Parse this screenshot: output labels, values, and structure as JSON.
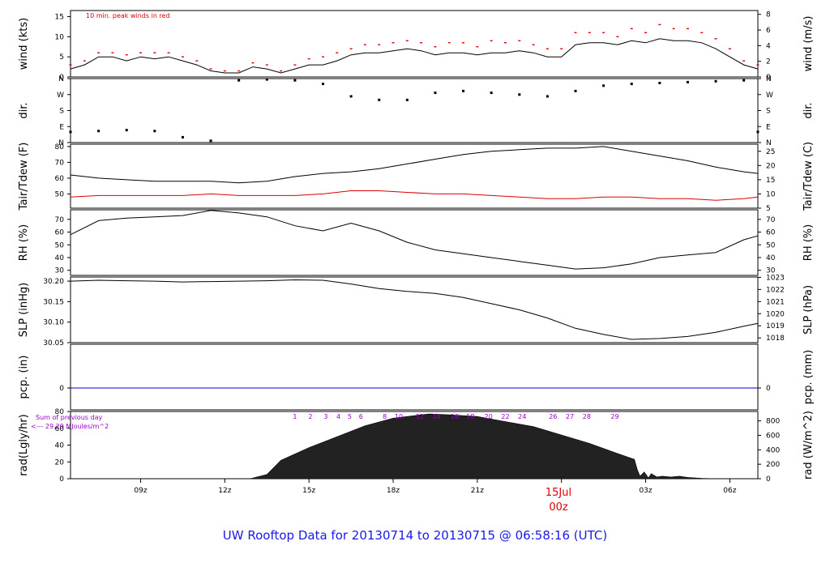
{
  "title": "UW Rooftop Data for 20130714  to  20130715 @ 06:58:16  (UTC)",
  "wind_note": "10 min. peak winds in red",
  "date_marker": {
    "day": "15Jul",
    "hour": "00z"
  },
  "solar_note": {
    "line1": "Sum of previous day",
    "line2": "<--- 29.29 MJoules/m^2"
  },
  "colors": {
    "title": "#1a1ae6",
    "peak": "#dd0000",
    "dew": "#dd0000",
    "precip": "#0000cc",
    "solar_marks": "#9900cc",
    "frame": "#000000"
  },
  "chart_data": [
    {
      "type": "line",
      "name": "wind",
      "ylabel_left": "wind (kts)",
      "ylabel_right": "wind (m/s)",
      "yticks_left": [
        "0",
        "5",
        "10",
        "15"
      ],
      "yticks_right": [
        "0",
        "2",
        "4",
        "6",
        "8"
      ],
      "ylim": [
        0,
        16.5
      ],
      "x_hours": [
        6.5,
        7.0,
        7.5,
        8.0,
        8.5,
        9.0,
        9.5,
        10.0,
        10.5,
        11.0,
        11.5,
        12.0,
        12.5,
        13.0,
        13.5,
        14.0,
        14.5,
        15.0,
        15.5,
        16.0,
        16.5,
        17.0,
        17.5,
        18.0,
        18.5,
        19.0,
        19.5,
        20.0,
        20.5,
        21.0,
        21.5,
        22.0,
        22.5,
        23.0,
        23.5,
        24.0,
        24.5,
        25.0,
        25.5,
        26.0,
        26.5,
        27.0,
        27.5,
        28.0,
        28.5,
        29.0,
        29.5,
        30.0,
        30.5,
        31.0
      ],
      "series": [
        {
          "values": [
            2,
            3,
            5,
            5,
            4,
            5,
            4.5,
            5,
            4,
            3,
            1.5,
            1,
            1,
            2.5,
            2,
            1,
            2,
            3,
            3,
            4,
            5.5,
            6,
            6,
            6.5,
            7,
            6.5,
            5.5,
            6,
            6,
            5.5,
            6,
            6,
            6.5,
            6,
            5,
            5,
            8,
            8.5,
            8.5,
            8,
            9,
            8.5,
            9.5,
            9,
            9,
            8.5,
            7,
            5,
            3,
            2
          ]
        },
        {
          "values": [
            3,
            4,
            6,
            6,
            5.5,
            6,
            6,
            6,
            5,
            4,
            2,
            1.5,
            1.5,
            3.5,
            3,
            1.5,
            3,
            4.5,
            5,
            6,
            7,
            8,
            8,
            8.5,
            9,
            8.5,
            7.5,
            8.5,
            8.5,
            7.5,
            9,
            8.5,
            9,
            8,
            7,
            7,
            11,
            11,
            11,
            10,
            12,
            11,
            13,
            12,
            12,
            11,
            9.5,
            7,
            4,
            3
          ]
        }
      ]
    },
    {
      "type": "scatter",
      "name": "wind direction",
      "ylabel_left": "dir.",
      "ylabel_right": "dir.",
      "yticks_left": [
        "N",
        "E",
        "S",
        "W",
        "N"
      ],
      "yticks_right": [
        "N",
        "E",
        "S",
        "W",
        "N"
      ],
      "ylim": [
        0,
        360
      ],
      "x_hours": [
        6.5,
        7.5,
        8.5,
        9.5,
        10.5,
        11.5,
        12.5,
        13.5,
        14.5,
        15.5,
        16.5,
        17.5,
        18.5,
        19.5,
        20.5,
        21.5,
        22.5,
        23.5,
        24.5,
        25.5,
        26.5,
        27.5,
        28.5,
        29.5,
        30.5,
        31.0
      ],
      "values": [
        60,
        65,
        70,
        65,
        30,
        10,
        350,
        355,
        350,
        330,
        260,
        240,
        240,
        280,
        290,
        280,
        270,
        260,
        290,
        320,
        330,
        335,
        340,
        345,
        350,
        60
      ]
    },
    {
      "type": "line",
      "name": "temperature",
      "ylabel_left": "Tair/Tdew (F)",
      "ylabel_right": "Tair/Tdew (C)",
      "yticks_left": [
        "50",
        "60",
        "70",
        "80"
      ],
      "yticks_right": [
        "5",
        "10",
        "15",
        "20",
        "25"
      ],
      "ylim": [
        41,
        81.5
      ],
      "x_hours": [
        6.5,
        7.5,
        8.5,
        9.5,
        10.5,
        11.5,
        12.5,
        13.5,
        14.5,
        15.5,
        16.5,
        17.5,
        18.5,
        19.5,
        20.5,
        21.5,
        22.5,
        23.5,
        24.5,
        25.5,
        26.5,
        27.5,
        28.5,
        29.5,
        30.5,
        31.0
      ],
      "series": [
        {
          "values": [
            62,
            60,
            59,
            58,
            58,
            58,
            57,
            58,
            61,
            63,
            64,
            66,
            69,
            72,
            75,
            77,
            78,
            79,
            79,
            80,
            77,
            74,
            71,
            67,
            64,
            63
          ]
        },
        {
          "values": [
            48,
            49,
            49,
            49,
            49,
            50,
            49,
            49,
            49,
            50,
            52,
            52,
            51,
            50,
            50,
            49,
            48,
            47,
            47,
            48,
            48,
            47,
            47,
            46,
            47,
            48
          ]
        }
      ]
    },
    {
      "type": "line",
      "name": "relative humidity",
      "ylabel_left": "RH (%)",
      "ylabel_right": "RH (%)",
      "yticks_left": [
        "30",
        "40",
        "50",
        "60",
        "70"
      ],
      "yticks_right": [
        "30",
        "40",
        "50",
        "60",
        "70"
      ],
      "ylim": [
        26,
        77.5
      ],
      "x_hours": [
        6.5,
        7.5,
        8.5,
        9.5,
        10.5,
        11.5,
        12.5,
        13.5,
        14.5,
        15.5,
        16.5,
        17.5,
        18.5,
        19.5,
        20.5,
        21.5,
        22.5,
        23.5,
        24.5,
        25.5,
        26.5,
        27.5,
        28.5,
        29.5,
        30.5,
        31.0
      ],
      "values": [
        58,
        69,
        71,
        72,
        73,
        77,
        75,
        72,
        65,
        61,
        67,
        61,
        52,
        46,
        43,
        40,
        37,
        34,
        31,
        32,
        35,
        40,
        42,
        44,
        54,
        57
      ]
    },
    {
      "type": "line",
      "name": "sea level pressure",
      "ylabel_left": "SLP (inHg)",
      "ylabel_right": "SLP (hPa)",
      "yticks_left": [
        "30.05",
        "30.10",
        "30.15",
        "30.20"
      ],
      "yticks_right": [
        "1018",
        "1019",
        "1020",
        "1021",
        "1022",
        "1023"
      ],
      "ylim": [
        30.05,
        30.21
      ],
      "x_hours": [
        6.5,
        7.5,
        8.5,
        9.5,
        10.5,
        11.5,
        12.5,
        13.5,
        14.5,
        15.5,
        16.5,
        17.5,
        18.5,
        19.5,
        20.5,
        21.5,
        22.5,
        23.5,
        24.5,
        25.5,
        26.5,
        27.5,
        28.5,
        29.5,
        30.5,
        31.0
      ],
      "values": [
        30.2,
        30.202,
        30.201,
        30.2,
        30.198,
        30.199,
        30.2,
        30.201,
        30.203,
        30.202,
        30.193,
        30.182,
        30.175,
        30.17,
        30.16,
        30.145,
        30.13,
        30.11,
        30.085,
        30.07,
        30.058,
        30.06,
        30.065,
        30.075,
        30.09,
        30.097
      ]
    },
    {
      "type": "line",
      "name": "precipitation",
      "ylabel_left": "pcp. (in)",
      "ylabel_right": "pcp. (mm)",
      "yticks_left": [
        "0"
      ],
      "yticks_right": [
        "0"
      ],
      "ylim": [
        -0.5,
        1
      ],
      "values": [
        0
      ]
    },
    {
      "type": "area",
      "name": "solar radiation",
      "ylabel_left": "rad(Lgly/hr)",
      "ylabel_right": "rad (W/m^2)",
      "yticks_left": [
        "0",
        "20",
        "40",
        "60",
        "80"
      ],
      "yticks_right": [
        "0",
        "200",
        "400",
        "600",
        "800"
      ],
      "ylim": [
        0,
        80
      ],
      "x_hours": [
        12.9,
        13.5,
        14.0,
        15.0,
        16.0,
        17.0,
        18.0,
        19.0,
        19.3,
        20.0,
        21.0,
        22.0,
        23.0,
        24.0,
        25.0,
        26.0,
        26.6,
        26.7,
        26.8,
        26.95,
        27.1,
        27.2,
        27.4,
        27.6,
        27.9,
        28.2,
        28.5,
        29.0,
        29.5
      ],
      "values": [
        0,
        5,
        22,
        37,
        50,
        63,
        72,
        76,
        77,
        76,
        74,
        68,
        62,
        52,
        42,
        30,
        23,
        11,
        3,
        8,
        1,
        6,
        2,
        3,
        2,
        3,
        1.5,
        0.5,
        0
      ],
      "hour_marks": [
        "1",
        "2",
        "3",
        "4",
        "5",
        "6",
        "8",
        "10",
        "12",
        "14",
        "16",
        "18",
        "20",
        "22",
        "24",
        "26",
        "27",
        "28",
        "29"
      ],
      "hour_mark_x": [
        14.5,
        15.05,
        15.6,
        16.05,
        16.45,
        16.85,
        17.7,
        18.2,
        18.95,
        19.55,
        20.2,
        20.75,
        21.4,
        22.0,
        22.6,
        23.7,
        24.3,
        24.9,
        25.9
      ]
    }
  ],
  "x_axis": {
    "tick_labels": [
      "09z",
      "12z",
      "15z",
      "18z",
      "21z",
      "03z",
      "06z"
    ],
    "tick_hours": [
      9,
      12,
      15,
      18,
      21,
      27,
      30
    ]
  }
}
